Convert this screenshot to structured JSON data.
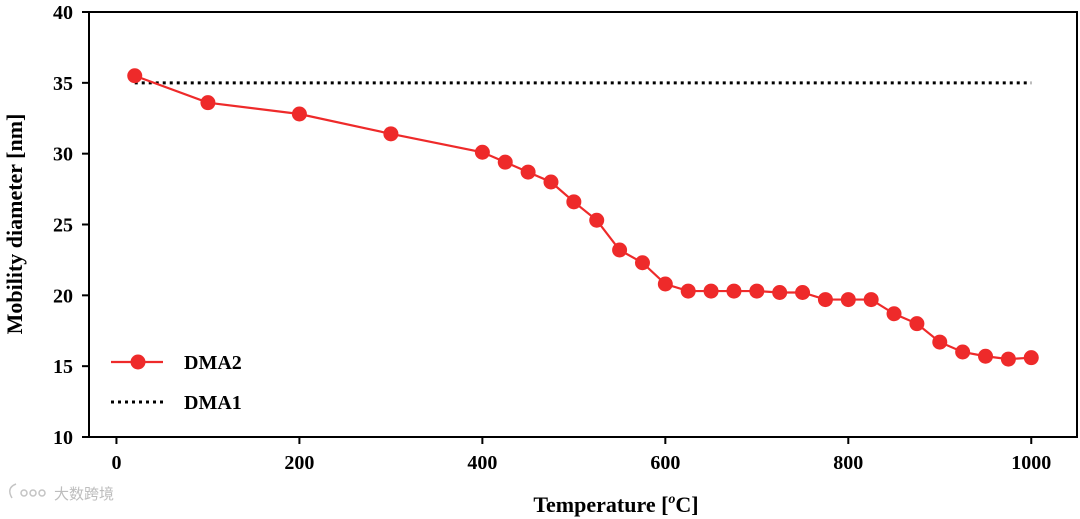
{
  "chart_data": {
    "type": "line",
    "title": "",
    "xlabel": "Temperature [",
    "xlabel_unit_sup": "o",
    "xlabel_unit": "C]",
    "ylabel": "Mobility diameter [nm]",
    "xlim": [
      -30,
      1050
    ],
    "ylim": [
      10,
      40
    ],
    "xticks": [
      0,
      200,
      400,
      600,
      800,
      1000
    ],
    "yticks": [
      10,
      15,
      20,
      25,
      30,
      35,
      40
    ],
    "legend_position": "lower-left",
    "series": [
      {
        "name": "DMA2",
        "style": "solid-line-circle-markers",
        "color": "#ee2a2a",
        "x": [
          20,
          100,
          200,
          300,
          400,
          425,
          450,
          475,
          500,
          525,
          550,
          575,
          600,
          625,
          650,
          675,
          700,
          725,
          750,
          775,
          800,
          825,
          850,
          875,
          900,
          925,
          950,
          975,
          1000
        ],
        "y": [
          35.5,
          33.6,
          32.8,
          31.4,
          30.1,
          29.4,
          28.7,
          28.0,
          26.6,
          25.3,
          23.2,
          22.3,
          20.8,
          20.3,
          20.3,
          20.3,
          20.3,
          20.2,
          20.2,
          19.7,
          19.7,
          19.7,
          18.7,
          18.0,
          16.7,
          16.0,
          15.7,
          15.5,
          15.6
        ]
      },
      {
        "name": "DMA1",
        "style": "dotted-line",
        "color": "#000000",
        "x": [
          20,
          1000
        ],
        "y": [
          35.0,
          35.0
        ]
      }
    ]
  },
  "watermark": {
    "text": "大数跨境",
    "icon": "ellipsis-icon"
  }
}
